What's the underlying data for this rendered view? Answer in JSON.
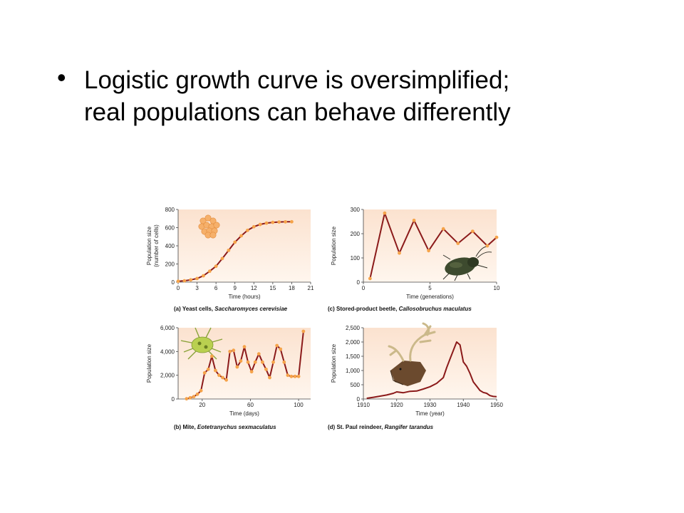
{
  "slide": {
    "bullet": "•",
    "title_line1": "Logistic growth curve is oversimplified;",
    "title_line2": "real populations can behave differently"
  },
  "colors": {
    "plot_bg_top": "#fbe5d4",
    "plot_bg_bottom": "#fff5ec",
    "line": "#8b1a1a",
    "marker": "#f5a34a"
  },
  "chart_data": [
    {
      "type": "line",
      "caption_prefix": "(a) Yeast cells, ",
      "caption_italic": "Saccharomyces cerevisiae",
      "xlabel": "Time (hours)",
      "ylabel": "Population size",
      "ylabel2": "(number of cells)",
      "xlim": [
        0,
        21
      ],
      "ylim": [
        0,
        800
      ],
      "xticks": [
        0,
        3,
        6,
        9,
        12,
        15,
        18,
        21
      ],
      "xtick_labels": [
        "0",
        "3",
        "6",
        "9",
        "12",
        "15",
        "18",
        "21"
      ],
      "yticks": [
        0,
        200,
        400,
        600,
        800
      ],
      "ytick_labels": [
        "0",
        "200",
        "400",
        "600",
        "800"
      ],
      "markers": true,
      "icon": "yeast-cells-icon",
      "x": [
        0,
        1,
        2,
        3,
        4,
        5,
        6,
        7,
        8,
        9,
        10,
        11,
        12,
        13,
        14,
        15,
        16,
        17,
        18
      ],
      "y": [
        10,
        15,
        25,
        40,
        70,
        120,
        175,
        260,
        350,
        440,
        510,
        570,
        610,
        635,
        650,
        658,
        662,
        664,
        665
      ]
    },
    {
      "type": "line",
      "caption_prefix": "(c) Stored-product beetle, ",
      "caption_italic": "Callosobruchus maculatus",
      "xlabel": "Time (generations)",
      "ylabel": "Population size",
      "ylabel2": "",
      "xlim": [
        0,
        10
      ],
      "ylim": [
        0,
        300
      ],
      "xticks": [
        0,
        5,
        10
      ],
      "xtick_labels": [
        "0",
        "5",
        "10"
      ],
      "yticks": [
        0,
        100,
        200,
        300
      ],
      "ytick_labels": [
        "0",
        "100",
        "200",
        "300"
      ],
      "markers": true,
      "icon": "beetle-icon",
      "x": [
        0.5,
        1.6,
        2.7,
        3.8,
        4.9,
        6.0,
        7.1,
        8.2,
        9.3,
        10
      ],
      "y": [
        15,
        285,
        120,
        255,
        130,
        220,
        160,
        210,
        150,
        185
      ]
    },
    {
      "type": "line",
      "caption_prefix": "(b) Mite, ",
      "caption_italic": "Eotetranychus sexmaculatus",
      "xlabel": "Time (days)",
      "ylabel": "Population size",
      "ylabel2": "",
      "xlim": [
        0,
        110
      ],
      "ylim": [
        0,
        6000
      ],
      "xticks": [
        20,
        60,
        100
      ],
      "xtick_labels": [
        "20",
        "60",
        "100"
      ],
      "yticks": [
        0,
        2000,
        4000,
        6000
      ],
      "ytick_labels": [
        "0",
        "2,000",
        "4,000",
        "6,000"
      ],
      "markers": true,
      "icon": "mite-icon",
      "x": [
        7,
        10,
        13,
        16,
        19,
        22,
        25,
        28,
        31,
        34,
        37,
        40,
        43,
        46,
        49,
        52,
        55,
        58,
        61,
        64,
        67,
        70,
        73,
        76,
        79,
        82,
        85,
        88,
        91,
        94,
        97,
        100,
        104
      ],
      "y": [
        20,
        100,
        200,
        400,
        700,
        2200,
        2500,
        3600,
        2400,
        2000,
        1800,
        1600,
        4000,
        4100,
        2700,
        3200,
        4400,
        3100,
        2300,
        3100,
        3800,
        3100,
        2500,
        1800,
        3100,
        4500,
        4200,
        3100,
        2000,
        1900,
        1900,
        1900,
        5700
      ]
    },
    {
      "type": "line",
      "caption_prefix": "(d) St. Paul reindeer, ",
      "caption_italic": "Rangifer tarandus",
      "xlabel": "Time (year)",
      "ylabel": "Population size",
      "ylabel2": "",
      "xlim": [
        1910,
        1950
      ],
      "ylim": [
        0,
        2500
      ],
      "xticks": [
        1910,
        1920,
        1930,
        1940,
        1950
      ],
      "xtick_labels": [
        "1910",
        "1920",
        "1930",
        "1940",
        "1950"
      ],
      "yticks": [
        0,
        500,
        1000,
        1500,
        2000,
        2500
      ],
      "ytick_labels": [
        "0",
        "500",
        "1,000",
        "1,500",
        "2,000",
        "2,500"
      ],
      "markers": false,
      "icon": "reindeer-icon",
      "x": [
        1911,
        1913,
        1915,
        1917,
        1919,
        1920,
        1922,
        1924,
        1926,
        1928,
        1930,
        1932,
        1934,
        1935,
        1936,
        1937,
        1938,
        1939,
        1940,
        1941,
        1942,
        1943,
        1944,
        1945,
        1946,
        1947,
        1948,
        1949,
        1950
      ],
      "y": [
        25,
        60,
        100,
        140,
        200,
        250,
        220,
        270,
        280,
        350,
        430,
        550,
        750,
        1100,
        1400,
        1700,
        2000,
        1900,
        1300,
        1150,
        900,
        600,
        450,
        300,
        230,
        200,
        120,
        90,
        80
      ]
    }
  ]
}
